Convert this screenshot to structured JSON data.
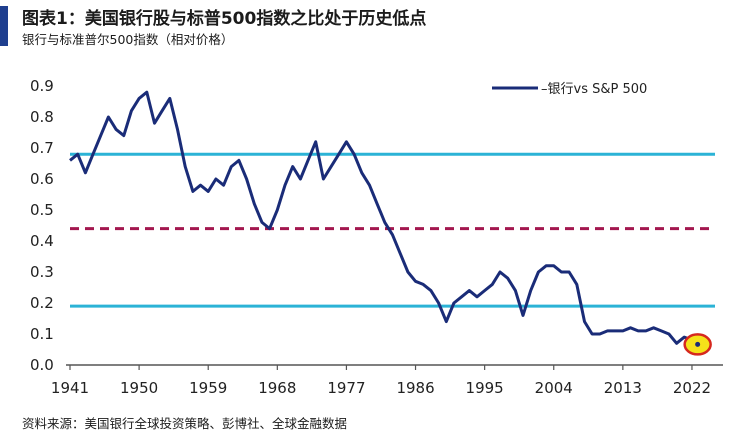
{
  "header": {
    "title": "图表1：美国银行股与标普500指数之比处于历史低点",
    "subtitle": "银行与标准普尔500指数（相对价格）"
  },
  "footer": {
    "source": "资料来源：美国银行全球投资策略、彭博社、全球金融数据"
  },
  "colors": {
    "series": "#1a2c78",
    "reference_lines": "#2bb3d6",
    "dashed_line": "#a3174f",
    "highlight_fill": "#f5e21a",
    "highlight_ring": "#d6281e",
    "accent": "#1f3f8f"
  },
  "chart_data": {
    "type": "line",
    "title": "图表1：美国银行股与标普500指数之比处于历史低点",
    "subtitle": "银行与标准普尔500指数（相对价格）",
    "xlabel": "",
    "ylabel": "",
    "x_ticks": [
      "1941",
      "1950",
      "1959",
      "1968",
      "1977",
      "1986",
      "1995",
      "2004",
      "2013",
      "2022"
    ],
    "y_ticks": [
      "0.0",
      "0.1",
      "0.2",
      "0.3",
      "0.4",
      "0.5",
      "0.6",
      "0.7",
      "0.8",
      "0.9"
    ],
    "xlim": [
      1941,
      2025
    ],
    "ylim": [
      0,
      0.9
    ],
    "grid": false,
    "legend_position": "top-right",
    "series": [
      {
        "name": "–银行vs S&P 500",
        "x": [
          1941,
          1942,
          1943,
          1944,
          1945,
          1946,
          1947,
          1948,
          1949,
          1950,
          1951,
          1952,
          1953,
          1954,
          1955,
          1956,
          1957,
          1958,
          1959,
          1960,
          1961,
          1962,
          1963,
          1964,
          1965,
          1966,
          1967,
          1968,
          1969,
          1970,
          1971,
          1972,
          1973,
          1974,
          1975,
          1976,
          1977,
          1978,
          1979,
          1980,
          1981,
          1982,
          1983,
          1984,
          1985,
          1986,
          1987,
          1988,
          1989,
          1990,
          1991,
          1992,
          1993,
          1994,
          1995,
          1996,
          1997,
          1998,
          1999,
          2000,
          2001,
          2002,
          2003,
          2004,
          2005,
          2006,
          2007,
          2008,
          2009,
          2010,
          2011,
          2012,
          2013,
          2014,
          2015,
          2016,
          2017,
          2018,
          2019,
          2020,
          2021,
          2022,
          2023
        ],
        "values": [
          0.66,
          0.68,
          0.62,
          0.68,
          0.74,
          0.8,
          0.76,
          0.74,
          0.82,
          0.86,
          0.88,
          0.78,
          0.82,
          0.86,
          0.76,
          0.64,
          0.56,
          0.58,
          0.56,
          0.6,
          0.58,
          0.64,
          0.66,
          0.6,
          0.52,
          0.46,
          0.44,
          0.5,
          0.58,
          0.64,
          0.6,
          0.66,
          0.72,
          0.6,
          0.64,
          0.68,
          0.72,
          0.68,
          0.62,
          0.58,
          0.52,
          0.46,
          0.42,
          0.36,
          0.3,
          0.27,
          0.26,
          0.24,
          0.2,
          0.14,
          0.2,
          0.22,
          0.24,
          0.22,
          0.24,
          0.26,
          0.3,
          0.28,
          0.24,
          0.16,
          0.24,
          0.3,
          0.32,
          0.32,
          0.3,
          0.3,
          0.26,
          0.14,
          0.1,
          0.1,
          0.11,
          0.11,
          0.11,
          0.12,
          0.11,
          0.11,
          0.12,
          0.11,
          0.1,
          0.07,
          0.09,
          0.08,
          0.06
        ]
      }
    ],
    "reference_lines": [
      {
        "y": 0.68,
        "style": "solid"
      },
      {
        "y": 0.44,
        "style": "dashed"
      },
      {
        "y": 0.19,
        "style": "solid"
      }
    ],
    "highlight_point": {
      "x": 2023,
      "y": 0.06
    }
  }
}
